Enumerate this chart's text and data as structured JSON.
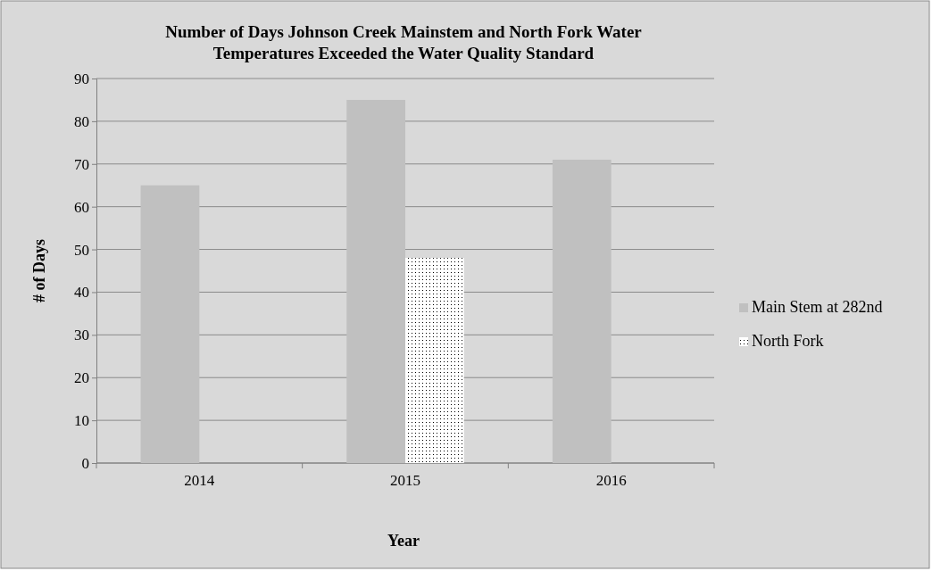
{
  "chart_data": {
    "type": "bar",
    "title": "Number of Days Johnson Creek Mainstem and North Fork Water Temperatures Exceeded the Water Quality Standard",
    "xlabel": "Year",
    "ylabel": "# of Days",
    "categories": [
      "2014",
      "2015",
      "2016"
    ],
    "series": [
      {
        "name": "Main Stem at 282nd",
        "color": "#c0c0c0",
        "values": [
          65,
          85,
          71
        ]
      },
      {
        "name": "North Fork",
        "color": "#ffffff",
        "values": [
          null,
          48,
          null
        ]
      }
    ],
    "ylim": [
      0,
      90
    ],
    "yticks": [
      0,
      10,
      20,
      30,
      40,
      50,
      60,
      70,
      80,
      90
    ],
    "grid": "y",
    "legend": "right"
  }
}
